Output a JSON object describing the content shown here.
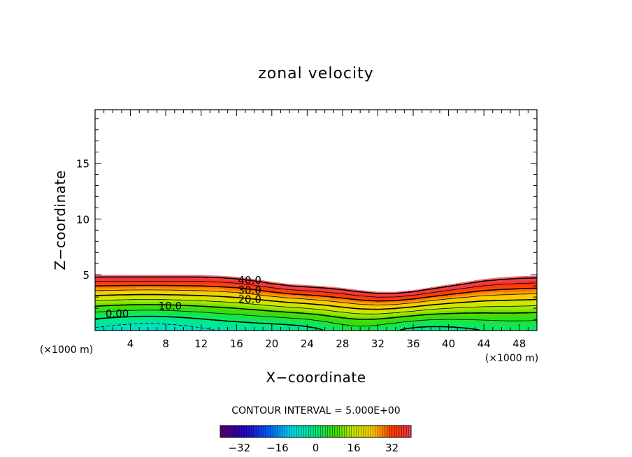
{
  "chart_data": {
    "type": "contour",
    "title": "zonal velocity",
    "xlabel": "X−coordinate",
    "ylabel": "Z−coordinate",
    "x_unit_left": "(×1000 m)",
    "x_unit_right": "(×1000 m)",
    "xlim": [
      0,
      50
    ],
    "ylim": [
      0,
      19.8
    ],
    "x_ticks": [
      4,
      8,
      12,
      16,
      20,
      24,
      28,
      32,
      36,
      40,
      44,
      48
    ],
    "y_ticks": [
      5,
      10,
      15
    ],
    "contour_interval_text": "CONTOUR INTERVAL = 5.000E+00",
    "contour_labels": [
      {
        "text": "40.0",
        "x": 17.5,
        "z": 4.5
      },
      {
        "text": "30.0",
        "x": 17.5,
        "z": 3.6
      },
      {
        "text": "20.0",
        "x": 17.5,
        "z": 2.8
      },
      {
        "text": "10.0",
        "x": 8.5,
        "z": 2.2
      },
      {
        "text": "0.00",
        "x": 2.5,
        "z": 1.5
      }
    ],
    "surface_top_profile": {
      "x": [
        0,
        4,
        8,
        12,
        14,
        16,
        18,
        20,
        22,
        24,
        26,
        28,
        30,
        32,
        34,
        36,
        38,
        40,
        42,
        44,
        46,
        48,
        50
      ],
      "z": [
        4.95,
        4.95,
        4.95,
        4.95,
        4.9,
        4.8,
        4.6,
        4.35,
        4.15,
        4.05,
        3.95,
        3.8,
        3.6,
        3.45,
        3.45,
        3.6,
        3.85,
        4.1,
        4.35,
        4.6,
        4.75,
        4.85,
        4.9
      ]
    },
    "colorbar": {
      "range": [
        -40,
        40
      ],
      "tick_values": [
        -32,
        -16,
        0,
        16,
        32
      ],
      "tick_labels": [
        "−32",
        "−16",
        "0",
        "16",
        "32"
      ],
      "levels": 80
    }
  }
}
